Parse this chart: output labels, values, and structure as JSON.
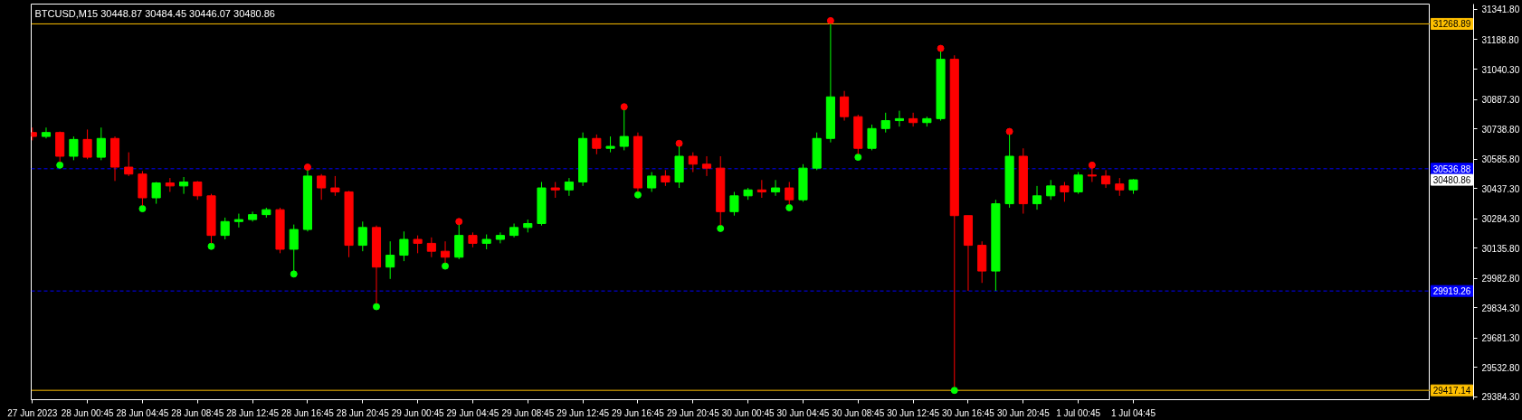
{
  "chart_data": {
    "type": "candlestick",
    "title": "BTCUSD,M15  30448.87 30484.45 30446.07 30480.86",
    "colors": [
      "#ff0000",
      "#00ff00",
      "#ff0000",
      "#00ff00",
      "#ff0000",
      "#00ff00",
      "#ff0000",
      "#ff0000",
      "#ff0000",
      "#00ff00",
      "#ff0000",
      "#00ff00",
      "#ff0000",
      "#ff0000",
      "#00ff00",
      "#00ff00",
      "#00ff00",
      "#00ff00",
      "#ff0000",
      "#00ff00",
      "#00ff00",
      "#ff0000",
      "#ff0000",
      "#ff0000",
      "#00ff00",
      "#ff0000",
      "#00ff00",
      "#00ff00",
      "#ff0000",
      "#ff0000",
      "#ff0000",
      "#00ff00",
      "#ff0000",
      "#00ff00",
      "#00ff00",
      "#00ff00",
      "#00ff00",
      "#00ff00",
      "#ff0000",
      "#00ff00",
      "#00ff00",
      "#ff0000",
      "#00ff00",
      "#00ff00",
      "#ff0000",
      "#00ff00",
      "#ff0000",
      "#00ff00",
      "#ff0000",
      "#ff0000",
      "#ff0000",
      "#00ff00",
      "#00ff00",
      "#ff0000",
      "#00ff00",
      "#ff0000",
      "#00ff00",
      "#00ff00",
      "#00ff00",
      "#ff0000",
      "#ff0000",
      "#00ff00",
      "#00ff00",
      "#00ff00",
      "#ff0000",
      "#00ff00",
      "#00ff00",
      "#ff0000",
      "#ff0000",
      "#ff0000",
      "#00ff00",
      "#00ff00",
      "#ff0000",
      "#00ff00",
      "#00ff00",
      "#ff0000",
      "#00ff00",
      "#ff0000",
      "#ff0000",
      "#ff0000",
      "#00ff00"
    ],
    "x": [
      "2023-06-27T20:45",
      "2023-06-27T21:45",
      "2023-06-27T22:45",
      "2023-06-27T23:45",
      "2023-06-28T00:45",
      "2023-06-28T01:45",
      "2023-06-28T02:45",
      "2023-06-28T03:45",
      "2023-06-28T04:45",
      "2023-06-28T05:45",
      "2023-06-28T06:45",
      "2023-06-28T07:45",
      "2023-06-28T08:45",
      "2023-06-28T09:45",
      "2023-06-28T10:45",
      "2023-06-28T11:45",
      "2023-06-28T12:45",
      "2023-06-28T13:45",
      "2023-06-28T14:45",
      "2023-06-28T15:45",
      "2023-06-28T16:45",
      "2023-06-28T17:45",
      "2023-06-28T18:45",
      "2023-06-28T19:45",
      "2023-06-28T20:45",
      "2023-06-28T21:45",
      "2023-06-28T22:45",
      "2023-06-28T23:45",
      "2023-06-29T00:45",
      "2023-06-29T01:45",
      "2023-06-29T02:45",
      "2023-06-29T03:45",
      "2023-06-29T04:45",
      "2023-06-29T05:45",
      "2023-06-29T06:45",
      "2023-06-29T07:45",
      "2023-06-29T08:45",
      "2023-06-29T09:45",
      "2023-06-29T10:45",
      "2023-06-29T11:45",
      "2023-06-29T12:45",
      "2023-06-29T13:45",
      "2023-06-29T14:45",
      "2023-06-29T15:45",
      "2023-06-29T16:45",
      "2023-06-29T17:45",
      "2023-06-29T18:45",
      "2023-06-29T19:45",
      "2023-06-29T20:45",
      "2023-06-29T21:45",
      "2023-06-29T22:45",
      "2023-06-29T23:45",
      "2023-06-30T00:45",
      "2023-06-30T01:45",
      "2023-06-30T02:45",
      "2023-06-30T03:45",
      "2023-06-30T04:45",
      "2023-06-30T05:45",
      "2023-06-30T06:45",
      "2023-06-30T07:45",
      "2023-06-30T08:45",
      "2023-06-30T09:45",
      "2023-06-30T10:45",
      "2023-06-30T11:45",
      "2023-06-30T12:45",
      "2023-06-30T13:45",
      "2023-06-30T14:45",
      "2023-06-30T15:45",
      "2023-06-30T16:45",
      "2023-06-30T17:45",
      "2023-06-30T18:45",
      "2023-06-30T19:45",
      "2023-06-30T20:45",
      "2023-06-30T21:45",
      "2023-06-30T22:45",
      "2023-06-30T23:45",
      "2023-07-01T00:45",
      "2023-07-01T01:45",
      "2023-07-01T02:45",
      "2023-07-01T03:45",
      "2023-07-01T04:45"
    ],
    "ohlc": [
      [
        30720,
        30745,
        30680,
        30700
      ],
      [
        30700,
        30745,
        30690,
        30720
      ],
      [
        30720,
        30725,
        30570,
        30600
      ],
      [
        30600,
        30700,
        30580,
        30685
      ],
      [
        30685,
        30735,
        30585,
        30595
      ],
      [
        30595,
        30745,
        30580,
        30690
      ],
      [
        30690,
        30700,
        30475,
        30545
      ],
      [
        30545,
        30620,
        30500,
        30510
      ],
      [
        30510,
        30525,
        30350,
        30390
      ],
      [
        30390,
        30470,
        30360,
        30465
      ],
      [
        30465,
        30490,
        30420,
        30450
      ],
      [
        30450,
        30495,
        30410,
        30470
      ],
      [
        30470,
        30475,
        30380,
        30400
      ],
      [
        30400,
        30410,
        30160,
        30200
      ],
      [
        30200,
        30290,
        30180,
        30270
      ],
      [
        30270,
        30310,
        30240,
        30280
      ],
      [
        30280,
        30320,
        30270,
        30305
      ],
      [
        30305,
        30340,
        30290,
        30330
      ],
      [
        30330,
        30340,
        30110,
        30130
      ],
      [
        30130,
        30255,
        30020,
        30230
      ],
      [
        30230,
        30530,
        30220,
        30500
      ],
      [
        30500,
        30510,
        30380,
        30440
      ],
      [
        30440,
        30500,
        30400,
        30420
      ],
      [
        30420,
        30425,
        30090,
        30150
      ],
      [
        30150,
        30270,
        30120,
        30240
      ],
      [
        30240,
        30250,
        29855,
        30040
      ],
      [
        30040,
        30170,
        29980,
        30100
      ],
      [
        30100,
        30220,
        30070,
        30180
      ],
      [
        30180,
        30200,
        30110,
        30160
      ],
      [
        30160,
        30190,
        30090,
        30120
      ],
      [
        30120,
        30170,
        30060,
        30090
      ],
      [
        30090,
        30255,
        30080,
        30200
      ],
      [
        30200,
        30215,
        30140,
        30160
      ],
      [
        30160,
        30205,
        30130,
        30180
      ],
      [
        30180,
        30215,
        30160,
        30200
      ],
      [
        30200,
        30260,
        30190,
        30240
      ],
      [
        30240,
        30280,
        30215,
        30260
      ],
      [
        30260,
        30470,
        30250,
        30440
      ],
      [
        30440,
        30470,
        30390,
        30430
      ],
      [
        30430,
        30490,
        30400,
        30470
      ],
      [
        30470,
        30720,
        30450,
        30690
      ],
      [
        30690,
        30710,
        30610,
        30640
      ],
      [
        30640,
        30700,
        30620,
        30650
      ],
      [
        30650,
        30835,
        30630,
        30700
      ],
      [
        30700,
        30720,
        30420,
        30440
      ],
      [
        30440,
        30520,
        30420,
        30500
      ],
      [
        30500,
        30530,
        30450,
        30470
      ],
      [
        30470,
        30650,
        30440,
        30600
      ],
      [
        30600,
        30620,
        30520,
        30560
      ],
      [
        30560,
        30600,
        30500,
        30540
      ],
      [
        30540,
        30600,
        30250,
        30320
      ],
      [
        30320,
        30420,
        30300,
        30400
      ],
      [
        30400,
        30440,
        30380,
        30430
      ],
      [
        30430,
        30480,
        30390,
        30420
      ],
      [
        30420,
        30480,
        30400,
        30440
      ],
      [
        30440,
        30470,
        30355,
        30380
      ],
      [
        30380,
        30560,
        30370,
        30540
      ],
      [
        30540,
        30720,
        30530,
        30690
      ],
      [
        30690,
        31270,
        30670,
        30900
      ],
      [
        30900,
        30930,
        30780,
        30800
      ],
      [
        30800,
        30810,
        30610,
        30640
      ],
      [
        30640,
        30760,
        30630,
        30740
      ],
      [
        30740,
        30820,
        30720,
        30780
      ],
      [
        30780,
        30830,
        30750,
        30790
      ],
      [
        30790,
        30820,
        30750,
        30770
      ],
      [
        30770,
        30800,
        30750,
        30790
      ],
      [
        30790,
        31130,
        30780,
        31090
      ],
      [
        31090,
        31110,
        29435,
        30300
      ],
      [
        30300,
        30300,
        29920,
        30150
      ],
      [
        30150,
        30170,
        29960,
        30020
      ],
      [
        30020,
        30380,
        29920,
        30360
      ],
      [
        30360,
        30710,
        30340,
        30600
      ],
      [
        30600,
        30640,
        30310,
        30360
      ],
      [
        30360,
        30450,
        30330,
        30400
      ],
      [
        30400,
        30480,
        30380,
        30450
      ],
      [
        30450,
        30470,
        30370,
        30420
      ],
      [
        30420,
        30520,
        30410,
        30505
      ],
      [
        30505,
        30540,
        30470,
        30500
      ],
      [
        30500,
        30530,
        30440,
        30460
      ],
      [
        30460,
        30490,
        30400,
        30430
      ],
      [
        30430,
        30484.45,
        30410,
        30480.86
      ]
    ],
    "series": [
      {
        "type": "scatter",
        "color": "#ff0000",
        "x": [
          "2023-06-28T16:45",
          "2023-06-29T03:45",
          "2023-06-29T15:45",
          "2023-06-29T19:45",
          "2023-06-30T06:45",
          "2023-06-30T14:45",
          "2023-06-30T19:45",
          "2023-07-01T01:45"
        ],
        "values": [
          30545,
          30270,
          30850,
          30665,
          31285,
          31145,
          30725,
          30555
        ]
      },
      {
        "type": "scatter",
        "color": "#00ff00",
        "x": [
          "2023-06-27T22:45",
          "2023-06-28T04:45",
          "2023-06-28T09:45",
          "2023-06-28T15:45",
          "2023-06-28T21:45",
          "2023-06-29T02:45",
          "2023-06-29T16:45",
          "2023-06-29T22:45",
          "2023-06-30T03:45",
          "2023-06-30T08:45",
          "2023-06-30T15:45"
        ],
        "values": [
          30555,
          30335,
          30145,
          30005,
          29840,
          30045,
          30405,
          30235,
          30340,
          30595,
          29417
        ]
      }
    ],
    "marker": "circle",
    "ref_lines": [
      {
        "axis": "y",
        "value": 31268.89,
        "label": "31268.89",
        "color": "#ffc000",
        "line_style": "solid"
      },
      {
        "axis": "y",
        "value": 30536.88,
        "label": "30536.88",
        "color": "#0000ff",
        "line_style": "dashed"
      },
      {
        "axis": "y",
        "value": 29919.26,
        "label": "29919.26",
        "color": "#0000ff",
        "line_style": "dashed"
      },
      {
        "axis": "y",
        "value": 29417.14,
        "label": "29417.14",
        "color": "#ffc000",
        "line_style": "solid"
      }
    ],
    "annotations": [
      "30480.86"
    ],
    "xlim": [
      "2023-06-27T20:40",
      "2023-07-02T02:19"
    ],
    "xticks": [
      {
        "value": "2023-06-27T20:45",
        "label": "27 Jun 2023"
      },
      {
        "value": "2023-06-28T00:45",
        "label": "28 Jun 00:45"
      },
      {
        "value": "2023-06-28T04:45",
        "label": "28 Jun 04:45"
      },
      {
        "value": "2023-06-28T08:45",
        "label": "28 Jun 08:45"
      },
      {
        "value": "2023-06-28T12:45",
        "label": "28 Jun 12:45"
      },
      {
        "value": "2023-06-28T16:45",
        "label": "28 Jun 16:45"
      },
      {
        "value": "2023-06-28T20:45",
        "label": "28 Jun 20:45"
      },
      {
        "value": "2023-06-29T00:45",
        "label": "29 Jun 00:45"
      },
      {
        "value": "2023-06-29T04:45",
        "label": "29 Jun 04:45"
      },
      {
        "value": "2023-06-29T08:45",
        "label": "29 Jun 08:45"
      },
      {
        "value": "2023-06-29T12:45",
        "label": "29 Jun 12:45"
      },
      {
        "value": "2023-06-29T16:45",
        "label": "29 Jun 16:45"
      },
      {
        "value": "2023-06-29T20:45",
        "label": "29 Jun 20:45"
      },
      {
        "value": "2023-06-30T00:45",
        "label": "30 Jun 00:45"
      },
      {
        "value": "2023-06-30T04:45",
        "label": "30 Jun 04:45"
      },
      {
        "value": "2023-06-30T08:45",
        "label": "30 Jun 08:45"
      },
      {
        "value": "2023-06-30T12:45",
        "label": "30 Jun 12:45"
      },
      {
        "value": "2023-06-30T16:45",
        "label": "30 Jun 16:45"
      },
      {
        "value": "2023-06-30T20:45",
        "label": "30 Jun 20:45"
      },
      {
        "value": "2023-07-01T00:45",
        "label": "1 Jul 00:45"
      },
      {
        "value": "2023-07-01T04:45",
        "label": "1 Jul 04:45"
      }
    ],
    "ylim": [
      29370,
      31369
    ],
    "yticks": [
      {
        "value": 29384.3,
        "label": "29384.30"
      },
      {
        "value": 29532.8,
        "label": "29532.80"
      },
      {
        "value": 29681.3,
        "label": "29681.30"
      },
      {
        "value": 29834.3,
        "label": "29834.30"
      },
      {
        "value": 29982.8,
        "label": "29982.80"
      },
      {
        "value": 30135.8,
        "label": "30135.80"
      },
      {
        "value": 30284.3,
        "label": "30284.30"
      },
      {
        "value": 30437.3,
        "label": "30437.30"
      },
      {
        "value": 30585.8,
        "label": "30585.80"
      },
      {
        "value": 30738.8,
        "label": "30738.80"
      },
      {
        "value": 30887.3,
        "label": "30887.30"
      },
      {
        "value": 31040.3,
        "label": "31040.30"
      },
      {
        "value": 31188.8,
        "label": "31188.80"
      },
      {
        "value": 31341.8,
        "label": "31341.80"
      }
    ],
    "grid": false
  }
}
